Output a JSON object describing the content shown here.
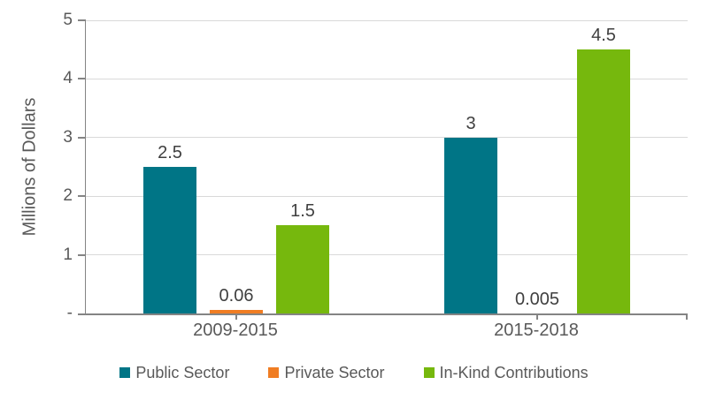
{
  "chart_data": {
    "type": "bar",
    "title": "",
    "xlabel": "",
    "ylabel": "Millions of Dollars",
    "categories": [
      "2009-2015",
      "2015-2018"
    ],
    "series": [
      {
        "name": "Public Sector",
        "color": "#007586",
        "values": [
          2.5,
          3
        ],
        "labels": [
          "2.5",
          "3"
        ]
      },
      {
        "name": "Private Sector",
        "color": "#F07D23",
        "values": [
          0.06,
          0.005
        ],
        "labels": [
          "0.06",
          "0.005"
        ]
      },
      {
        "name": "In-Kind Contributions",
        "color": "#76B80D",
        "values": [
          1.5,
          4.5
        ],
        "labels": [
          "1.5",
          "4.5"
        ]
      }
    ],
    "ylim": [
      0,
      5
    ],
    "yticks": [
      {
        "value": 5,
        "label": "5"
      },
      {
        "value": 4,
        "label": "4"
      },
      {
        "value": 3,
        "label": "3"
      },
      {
        "value": 2,
        "label": "2"
      },
      {
        "value": 1,
        "label": "1"
      },
      {
        "value": 0,
        "label": "-"
      }
    ],
    "grid": true,
    "legend_position": "bottom"
  },
  "style": {
    "axis_color": "#848484",
    "gridline_color": "#D9D9D9",
    "axis_text_color": "#595959",
    "data_label_color": "#3F3F3F",
    "background": "#FFFFFF"
  }
}
